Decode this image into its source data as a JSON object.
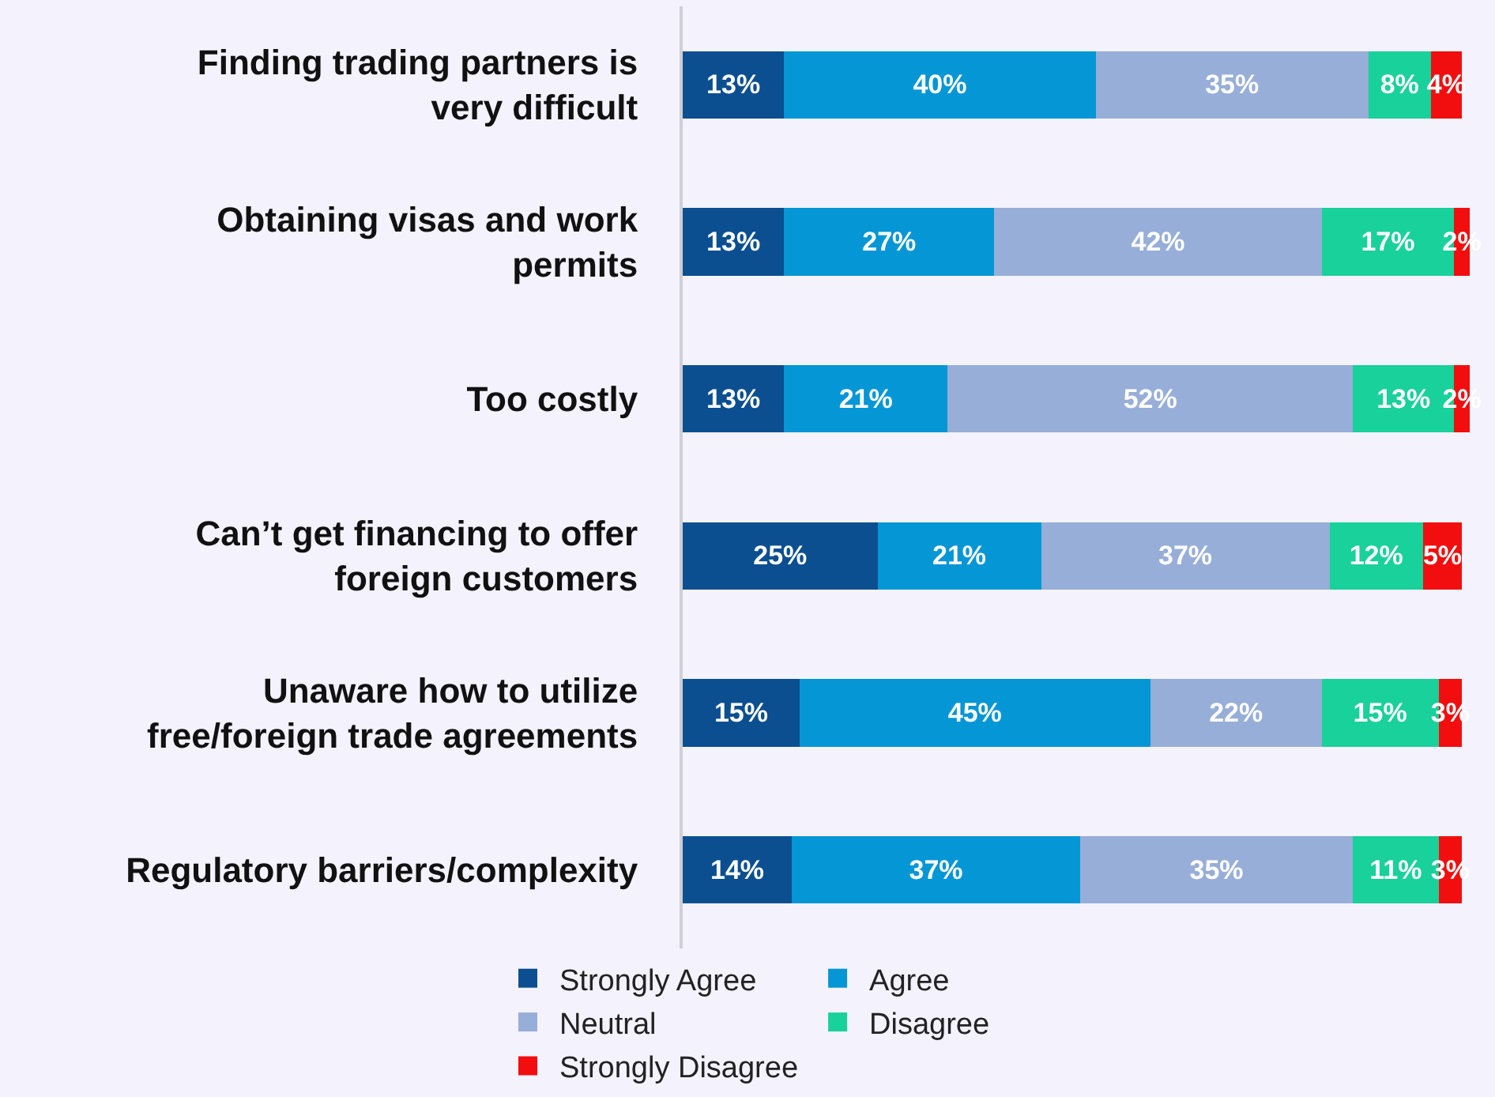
{
  "chart_data": {
    "type": "bar",
    "orientation": "horizontal",
    "stacked": true,
    "categories": [
      "Finding trading partners is very difficult",
      "Obtaining visas and work permits",
      "Too costly",
      "Can’t get financing to offer foreign customers",
      "Unaware how to utilize free/foreign trade agreements",
      "Regulatory barriers/complexity"
    ],
    "series": [
      {
        "name": "Strongly Agree",
        "color": "#0b4f91",
        "values": [
          13,
          13,
          13,
          25,
          15,
          14
        ],
        "value_labels": [
          "13%",
          "13%",
          "13%",
          "25%",
          "15%",
          "14%"
        ]
      },
      {
        "name": "Agree",
        "color": "#0596d6",
        "values": [
          40,
          27,
          21,
          21,
          45,
          37
        ],
        "value_labels": [
          "40%",
          "27%",
          "21%",
          "21%",
          "45%",
          "37%"
        ]
      },
      {
        "name": "Neutral",
        "color": "#97aed8",
        "values": [
          35,
          42,
          52,
          37,
          22,
          35
        ],
        "value_labels": [
          "35%",
          "42%",
          "52%",
          "37%",
          "22%",
          "35%"
        ]
      },
      {
        "name": "Disagree",
        "color": "#19d19a",
        "values": [
          8,
          17,
          13,
          12,
          15,
          11
        ],
        "value_labels": [
          "8%",
          "17%",
          "13%",
          "12%",
          "15%",
          "11%"
        ]
      },
      {
        "name": "Strongly Disagree",
        "color": "#f20e0e",
        "values": [
          4,
          2,
          2,
          5,
          3,
          3
        ],
        "value_labels": [
          "4%",
          "2%",
          "2%",
          "5%",
          "3%",
          "3%"
        ]
      }
    ],
    "xlim": [
      0,
      101
    ],
    "tick_labels": "y",
    "grid": false,
    "legend": "bottom"
  }
}
